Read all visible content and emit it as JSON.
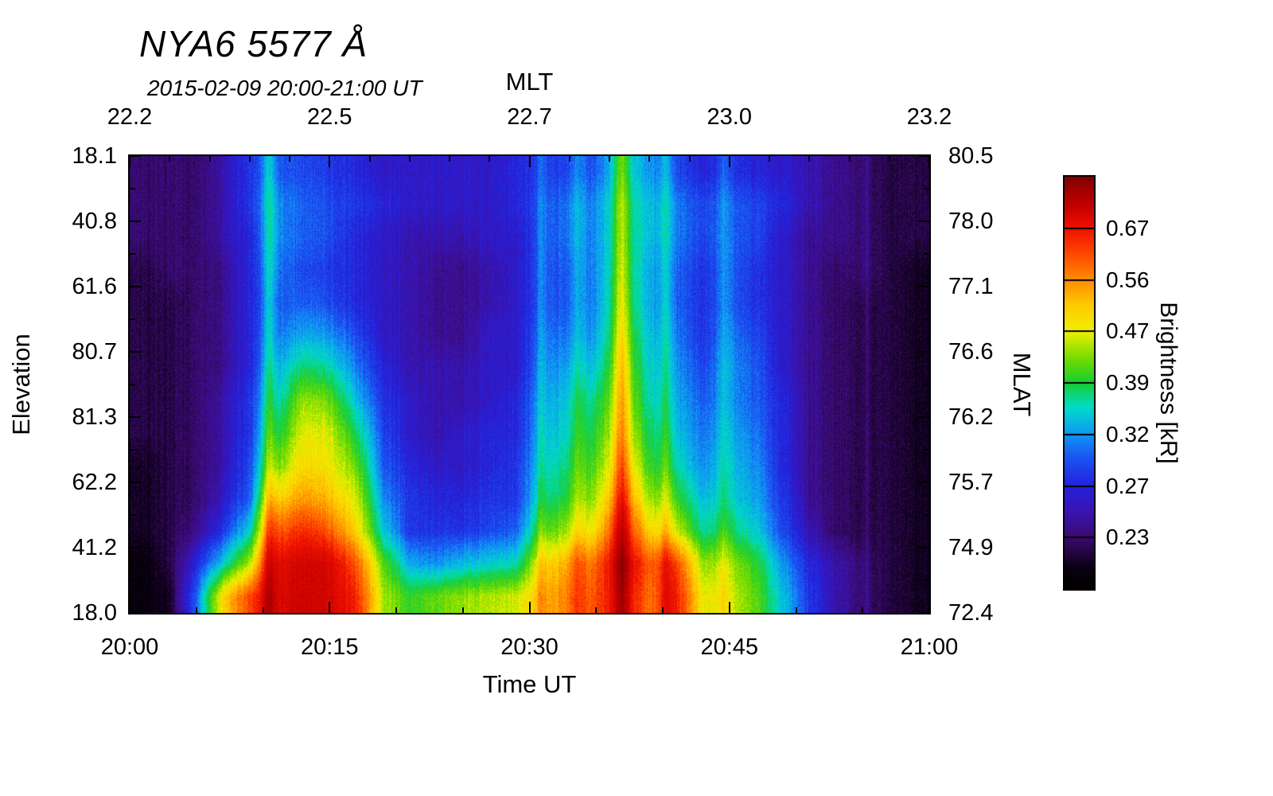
{
  "chart_data": {
    "type": "heatmap",
    "title": "NYA6 5577 Å",
    "subtitle": "2015-02-09 20:00-21:00 UT",
    "axes": {
      "top": {
        "label": "MLT",
        "tick_labels": [
          "22.2",
          "22.5",
          "22.7",
          "23.0",
          "23.2"
        ]
      },
      "bottom": {
        "label": "Time UT",
        "tick_labels": [
          "20:00",
          "20:15",
          "20:30",
          "20:45",
          "21:00"
        ]
      },
      "left": {
        "label": "Elevation",
        "tick_labels": [
          "18.1",
          "40.8",
          "61.6",
          "80.7",
          "81.3",
          "62.2",
          "41.2",
          "18.0"
        ]
      },
      "right": {
        "label": "MLAT",
        "tick_labels": [
          "80.5",
          "78.0",
          "77.1",
          "76.6",
          "76.2",
          "75.7",
          "74.9",
          "72.4"
        ]
      }
    },
    "colorbar": {
      "label": "Brightness [kR]",
      "tick_labels_bottom_to_top": [
        "0.23",
        "0.27",
        "0.32",
        "0.39",
        "0.47",
        "0.56",
        "0.67"
      ],
      "tick_fractions_from_bottom": [
        0.125,
        0.25,
        0.375,
        0.5,
        0.625,
        0.75,
        0.875
      ],
      "colormap_stops": [
        [
          0.0,
          "#000000"
        ],
        [
          0.05,
          "#0a0010"
        ],
        [
          0.125,
          "#3b0a6e"
        ],
        [
          0.19,
          "#3a14b4"
        ],
        [
          0.25,
          "#2222dd"
        ],
        [
          0.32,
          "#1b55f2"
        ],
        [
          0.375,
          "#0f97f5"
        ],
        [
          0.44,
          "#00dcc8"
        ],
        [
          0.5,
          "#18cd32"
        ],
        [
          0.56,
          "#74dc00"
        ],
        [
          0.625,
          "#f0f000"
        ],
        [
          0.69,
          "#ffc800"
        ],
        [
          0.75,
          "#ff8c00"
        ],
        [
          0.815,
          "#ff4600"
        ],
        [
          0.875,
          "#ee1100"
        ],
        [
          0.93,
          "#c40000"
        ],
        [
          1.0,
          "#800000"
        ]
      ]
    },
    "value_color_anchors": {
      "values_kR": [
        0.19,
        0.23,
        0.27,
        0.32,
        0.39,
        0.47,
        0.56,
        0.67,
        0.9
      ],
      "fractions": [
        0.0,
        0.125,
        0.25,
        0.375,
        0.5,
        0.625,
        0.75,
        0.875,
        1.0
      ]
    },
    "grid": {
      "time_minutes_start": 0,
      "time_minutes_end": 60,
      "n_time_bins": 30,
      "n_elevation_bins": 14,
      "brightness_kR_rows_top_to_bottom": [
        [
          0.23,
          0.23,
          0.23,
          0.25,
          0.28,
          0.3,
          0.29,
          0.28,
          0.27,
          0.26,
          0.26,
          0.26,
          0.26,
          0.26,
          0.27,
          0.28,
          0.29,
          0.3,
          0.36,
          0.32,
          0.29,
          0.27,
          0.28,
          0.27,
          0.26,
          0.25,
          0.24,
          0.23,
          0.22,
          0.22
        ],
        [
          0.23,
          0.23,
          0.23,
          0.25,
          0.28,
          0.32,
          0.3,
          0.29,
          0.28,
          0.27,
          0.26,
          0.26,
          0.26,
          0.26,
          0.27,
          0.29,
          0.31,
          0.32,
          0.38,
          0.34,
          0.31,
          0.29,
          0.3,
          0.29,
          0.27,
          0.25,
          0.24,
          0.23,
          0.22,
          0.22
        ],
        [
          0.23,
          0.23,
          0.23,
          0.25,
          0.27,
          0.32,
          0.3,
          0.29,
          0.27,
          0.26,
          0.25,
          0.25,
          0.25,
          0.26,
          0.26,
          0.29,
          0.31,
          0.32,
          0.38,
          0.34,
          0.31,
          0.29,
          0.3,
          0.29,
          0.26,
          0.24,
          0.24,
          0.23,
          0.22,
          0.22
        ],
        [
          0.22,
          0.23,
          0.23,
          0.24,
          0.27,
          0.31,
          0.29,
          0.28,
          0.27,
          0.26,
          0.25,
          0.24,
          0.24,
          0.25,
          0.26,
          0.29,
          0.3,
          0.32,
          0.39,
          0.33,
          0.3,
          0.28,
          0.3,
          0.28,
          0.26,
          0.24,
          0.23,
          0.23,
          0.22,
          0.21
        ],
        [
          0.22,
          0.22,
          0.23,
          0.24,
          0.27,
          0.3,
          0.3,
          0.29,
          0.27,
          0.26,
          0.25,
          0.24,
          0.24,
          0.25,
          0.26,
          0.29,
          0.3,
          0.32,
          0.4,
          0.33,
          0.3,
          0.28,
          0.3,
          0.28,
          0.26,
          0.24,
          0.23,
          0.22,
          0.22,
          0.21
        ],
        [
          0.22,
          0.22,
          0.23,
          0.24,
          0.27,
          0.31,
          0.33,
          0.32,
          0.29,
          0.26,
          0.25,
          0.24,
          0.24,
          0.26,
          0.26,
          0.3,
          0.31,
          0.33,
          0.42,
          0.34,
          0.31,
          0.28,
          0.31,
          0.29,
          0.26,
          0.24,
          0.23,
          0.22,
          0.22,
          0.21
        ],
        [
          0.22,
          0.22,
          0.23,
          0.24,
          0.27,
          0.33,
          0.38,
          0.36,
          0.31,
          0.27,
          0.25,
          0.25,
          0.25,
          0.26,
          0.26,
          0.31,
          0.33,
          0.35,
          0.44,
          0.35,
          0.32,
          0.29,
          0.32,
          0.3,
          0.26,
          0.24,
          0.23,
          0.22,
          0.22,
          0.21
        ],
        [
          0.22,
          0.22,
          0.23,
          0.25,
          0.28,
          0.35,
          0.44,
          0.42,
          0.34,
          0.28,
          0.26,
          0.25,
          0.25,
          0.26,
          0.27,
          0.32,
          0.35,
          0.38,
          0.46,
          0.36,
          0.33,
          0.3,
          0.32,
          0.3,
          0.27,
          0.24,
          0.23,
          0.22,
          0.22,
          0.21
        ],
        [
          0.22,
          0.22,
          0.23,
          0.25,
          0.28,
          0.38,
          0.47,
          0.46,
          0.38,
          0.29,
          0.26,
          0.25,
          0.26,
          0.27,
          0.27,
          0.33,
          0.36,
          0.4,
          0.48,
          0.38,
          0.34,
          0.31,
          0.33,
          0.31,
          0.27,
          0.24,
          0.23,
          0.22,
          0.22,
          0.21
        ],
        [
          0.21,
          0.22,
          0.23,
          0.25,
          0.29,
          0.42,
          0.5,
          0.48,
          0.42,
          0.3,
          0.27,
          0.26,
          0.26,
          0.27,
          0.28,
          0.34,
          0.38,
          0.42,
          0.52,
          0.4,
          0.36,
          0.32,
          0.34,
          0.32,
          0.27,
          0.24,
          0.23,
          0.22,
          0.22,
          0.21
        ],
        [
          0.21,
          0.22,
          0.23,
          0.26,
          0.3,
          0.5,
          0.55,
          0.52,
          0.46,
          0.32,
          0.28,
          0.27,
          0.27,
          0.28,
          0.28,
          0.36,
          0.4,
          0.45,
          0.58,
          0.44,
          0.4,
          0.34,
          0.35,
          0.33,
          0.28,
          0.24,
          0.23,
          0.22,
          0.22,
          0.21
        ],
        [
          0.21,
          0.22,
          0.24,
          0.28,
          0.35,
          0.6,
          0.65,
          0.6,
          0.5,
          0.35,
          0.28,
          0.28,
          0.28,
          0.29,
          0.3,
          0.4,
          0.45,
          0.5,
          0.66,
          0.5,
          0.46,
          0.37,
          0.38,
          0.35,
          0.29,
          0.25,
          0.23,
          0.22,
          0.22,
          0.21
        ],
        [
          0.2,
          0.22,
          0.27,
          0.35,
          0.45,
          0.7,
          0.74,
          0.72,
          0.6,
          0.42,
          0.33,
          0.32,
          0.34,
          0.35,
          0.36,
          0.48,
          0.55,
          0.6,
          0.74,
          0.6,
          0.62,
          0.44,
          0.44,
          0.4,
          0.32,
          0.27,
          0.25,
          0.23,
          0.22,
          0.21
        ],
        [
          0.2,
          0.21,
          0.3,
          0.5,
          0.62,
          0.72,
          0.75,
          0.73,
          0.65,
          0.45,
          0.4,
          0.42,
          0.44,
          0.45,
          0.46,
          0.52,
          0.58,
          0.62,
          0.7,
          0.58,
          0.66,
          0.48,
          0.46,
          0.42,
          0.34,
          0.28,
          0.25,
          0.23,
          0.22,
          0.21
        ]
      ]
    },
    "bright_streak_minutes": [
      {
        "minute": 10.4,
        "boost": 0.18,
        "sigma_min": 0.35
      },
      {
        "minute": 30.9,
        "boost": 0.1,
        "sigma_min": 0.3
      },
      {
        "minute": 33.6,
        "boost": 0.08,
        "sigma_min": 0.3
      },
      {
        "minute": 36.9,
        "boost": 0.2,
        "sigma_min": 0.4
      },
      {
        "minute": 40.3,
        "boost": 0.12,
        "sigma_min": 0.3
      },
      {
        "minute": 44.6,
        "boost": 0.08,
        "sigma_min": 0.35
      },
      {
        "minute": 55.3,
        "boost": 0.06,
        "sigma_min": 0.15
      }
    ]
  }
}
